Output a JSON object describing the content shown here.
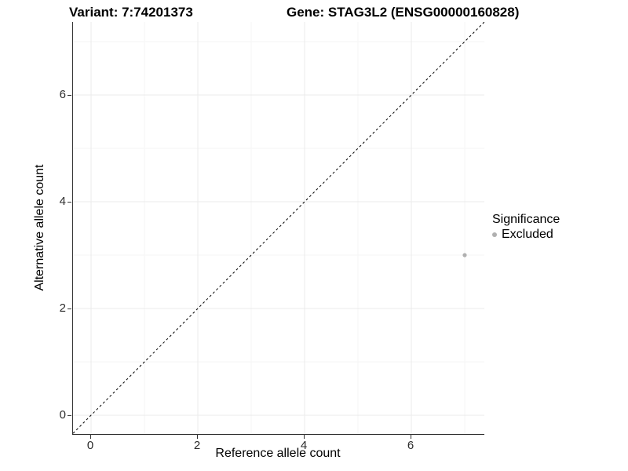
{
  "titles": {
    "variant": "Variant: 7:74201373",
    "gene": "Gene: STAG3L2 (ENSG00000160828)"
  },
  "axes": {
    "x": {
      "label": "Reference allele count",
      "ticks": [
        "0",
        "2",
        "4",
        "6"
      ]
    },
    "y": {
      "label": "Alternative allele count",
      "ticks": [
        "0",
        "2",
        "4",
        "6"
      ]
    }
  },
  "legend": {
    "title": "Significance",
    "items": [
      {
        "label": "Excluded",
        "color": "#b0b0b0"
      }
    ]
  },
  "colors": {
    "background": "#ffffff",
    "axis_line": "#333333",
    "grid_major": "#ebebeb",
    "grid_minor": "#f5f5f5",
    "reference_line": "#000000",
    "point_excluded": "#b0b0b0",
    "text": "#000000"
  },
  "chart_data": {
    "type": "scatter",
    "title": "Variant: 7:74201373 | Gene: STAG3L2 (ENSG00000160828)",
    "xlabel": "Reference allele count",
    "ylabel": "Alternative allele count",
    "xlim": [
      -0.35,
      7.35
    ],
    "ylim": [
      -0.35,
      7.35
    ],
    "x_ticks": [
      0,
      2,
      4,
      6
    ],
    "y_ticks": [
      0,
      2,
      4,
      6
    ],
    "x_minor_ticks": [
      1,
      3,
      5,
      7
    ],
    "y_minor_ticks": [
      1,
      3,
      5,
      7
    ],
    "grid": true,
    "legend_position": "right",
    "reference_line": {
      "style": "dashed",
      "equation": "y = x",
      "intercept": 0,
      "slope": 1
    },
    "series": [
      {
        "name": "Excluded",
        "color": "#b0b0b0",
        "points": [
          {
            "x": 7,
            "y": 3
          }
        ]
      }
    ]
  }
}
